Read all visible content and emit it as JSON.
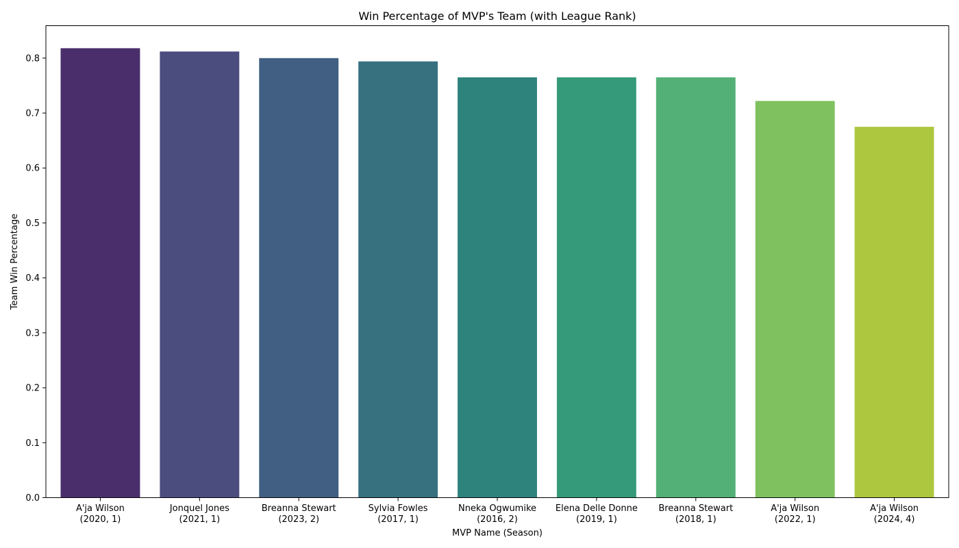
{
  "chart_data": {
    "type": "bar",
    "title": "Win Percentage of MVP's Team (with League Rank)",
    "xlabel": "MVP Name (Season)",
    "ylabel": "Team Win Percentage",
    "ylim": [
      0,
      0.859
    ],
    "yticks": [
      "0.0",
      "0.1",
      "0.2",
      "0.3",
      "0.4",
      "0.5",
      "0.6",
      "0.7",
      "0.8"
    ],
    "grid": false,
    "categories": [
      {
        "name": "A'ja Wilson",
        "detail": "(2020, 1)"
      },
      {
        "name": "Jonquel Jones",
        "detail": "(2021, 1)"
      },
      {
        "name": "Breanna Stewart",
        "detail": "(2023, 2)"
      },
      {
        "name": "Sylvia Fowles",
        "detail": "(2017, 1)"
      },
      {
        "name": "Nneka Ogwumike",
        "detail": "(2016, 2)"
      },
      {
        "name": "Elena Delle Donne",
        "detail": "(2019, 1)"
      },
      {
        "name": "Breanna Stewart",
        "detail": "(2018, 1)"
      },
      {
        "name": "A'ja Wilson",
        "detail": "(2022, 1)"
      },
      {
        "name": "A'ja Wilson",
        "detail": "(2024, 4)"
      }
    ],
    "values": [
      0.818,
      0.812,
      0.8,
      0.794,
      0.765,
      0.765,
      0.765,
      0.722,
      0.675
    ],
    "colors": [
      "#4a2e6b",
      "#4b4d7f",
      "#415f82",
      "#377180",
      "#2e837c",
      "#359a7a",
      "#53b077",
      "#80c15f",
      "#adc83f"
    ]
  }
}
